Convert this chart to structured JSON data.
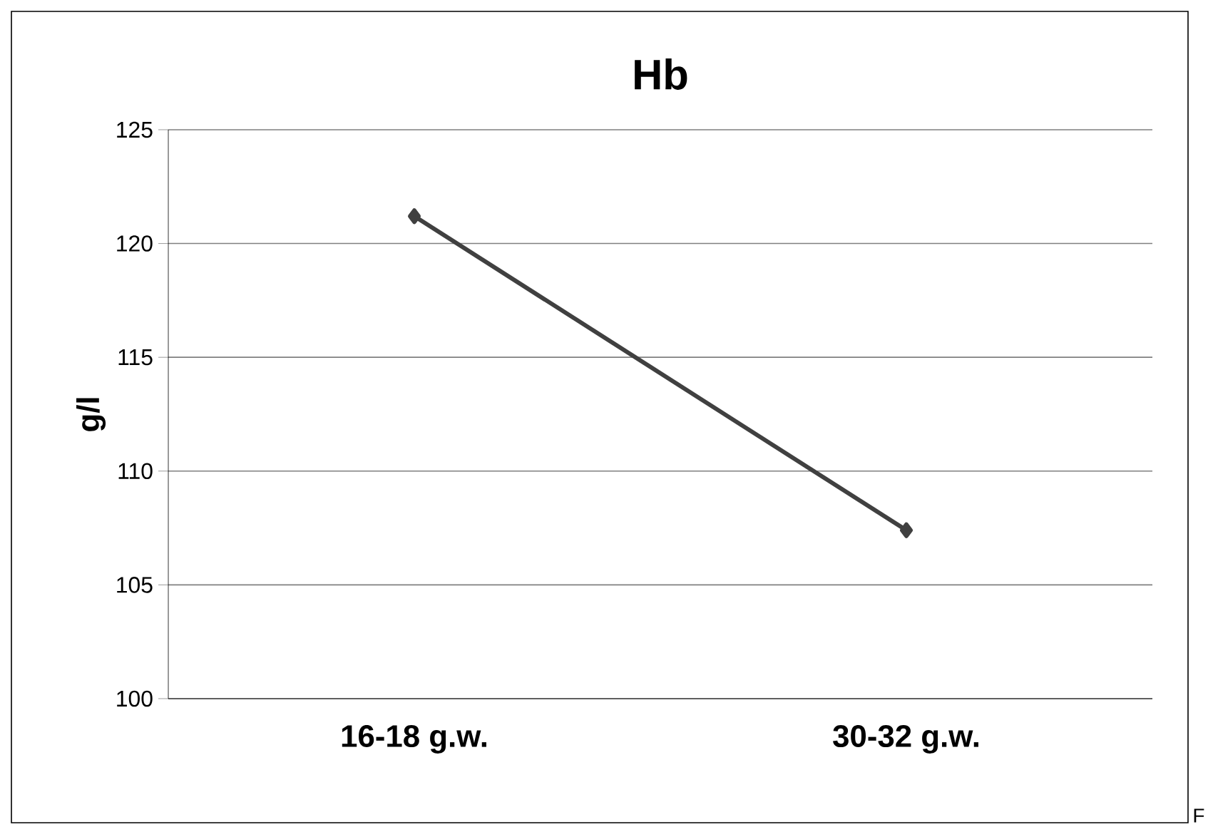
{
  "chart_data": {
    "type": "line",
    "title": "Hb",
    "ylabel": "g/l",
    "categories": [
      "16-18 g.w.",
      "30-32 g.w."
    ],
    "series": [
      {
        "color": "#404040",
        "values": [
          121.2,
          107.4
        ]
      }
    ],
    "ylim": [
      100,
      125
    ],
    "yticks": [
      100,
      105,
      110,
      115,
      120,
      125
    ],
    "grid": "y",
    "marker": "diamond",
    "line_style": "solid",
    "annotations": [
      "F"
    ]
  }
}
